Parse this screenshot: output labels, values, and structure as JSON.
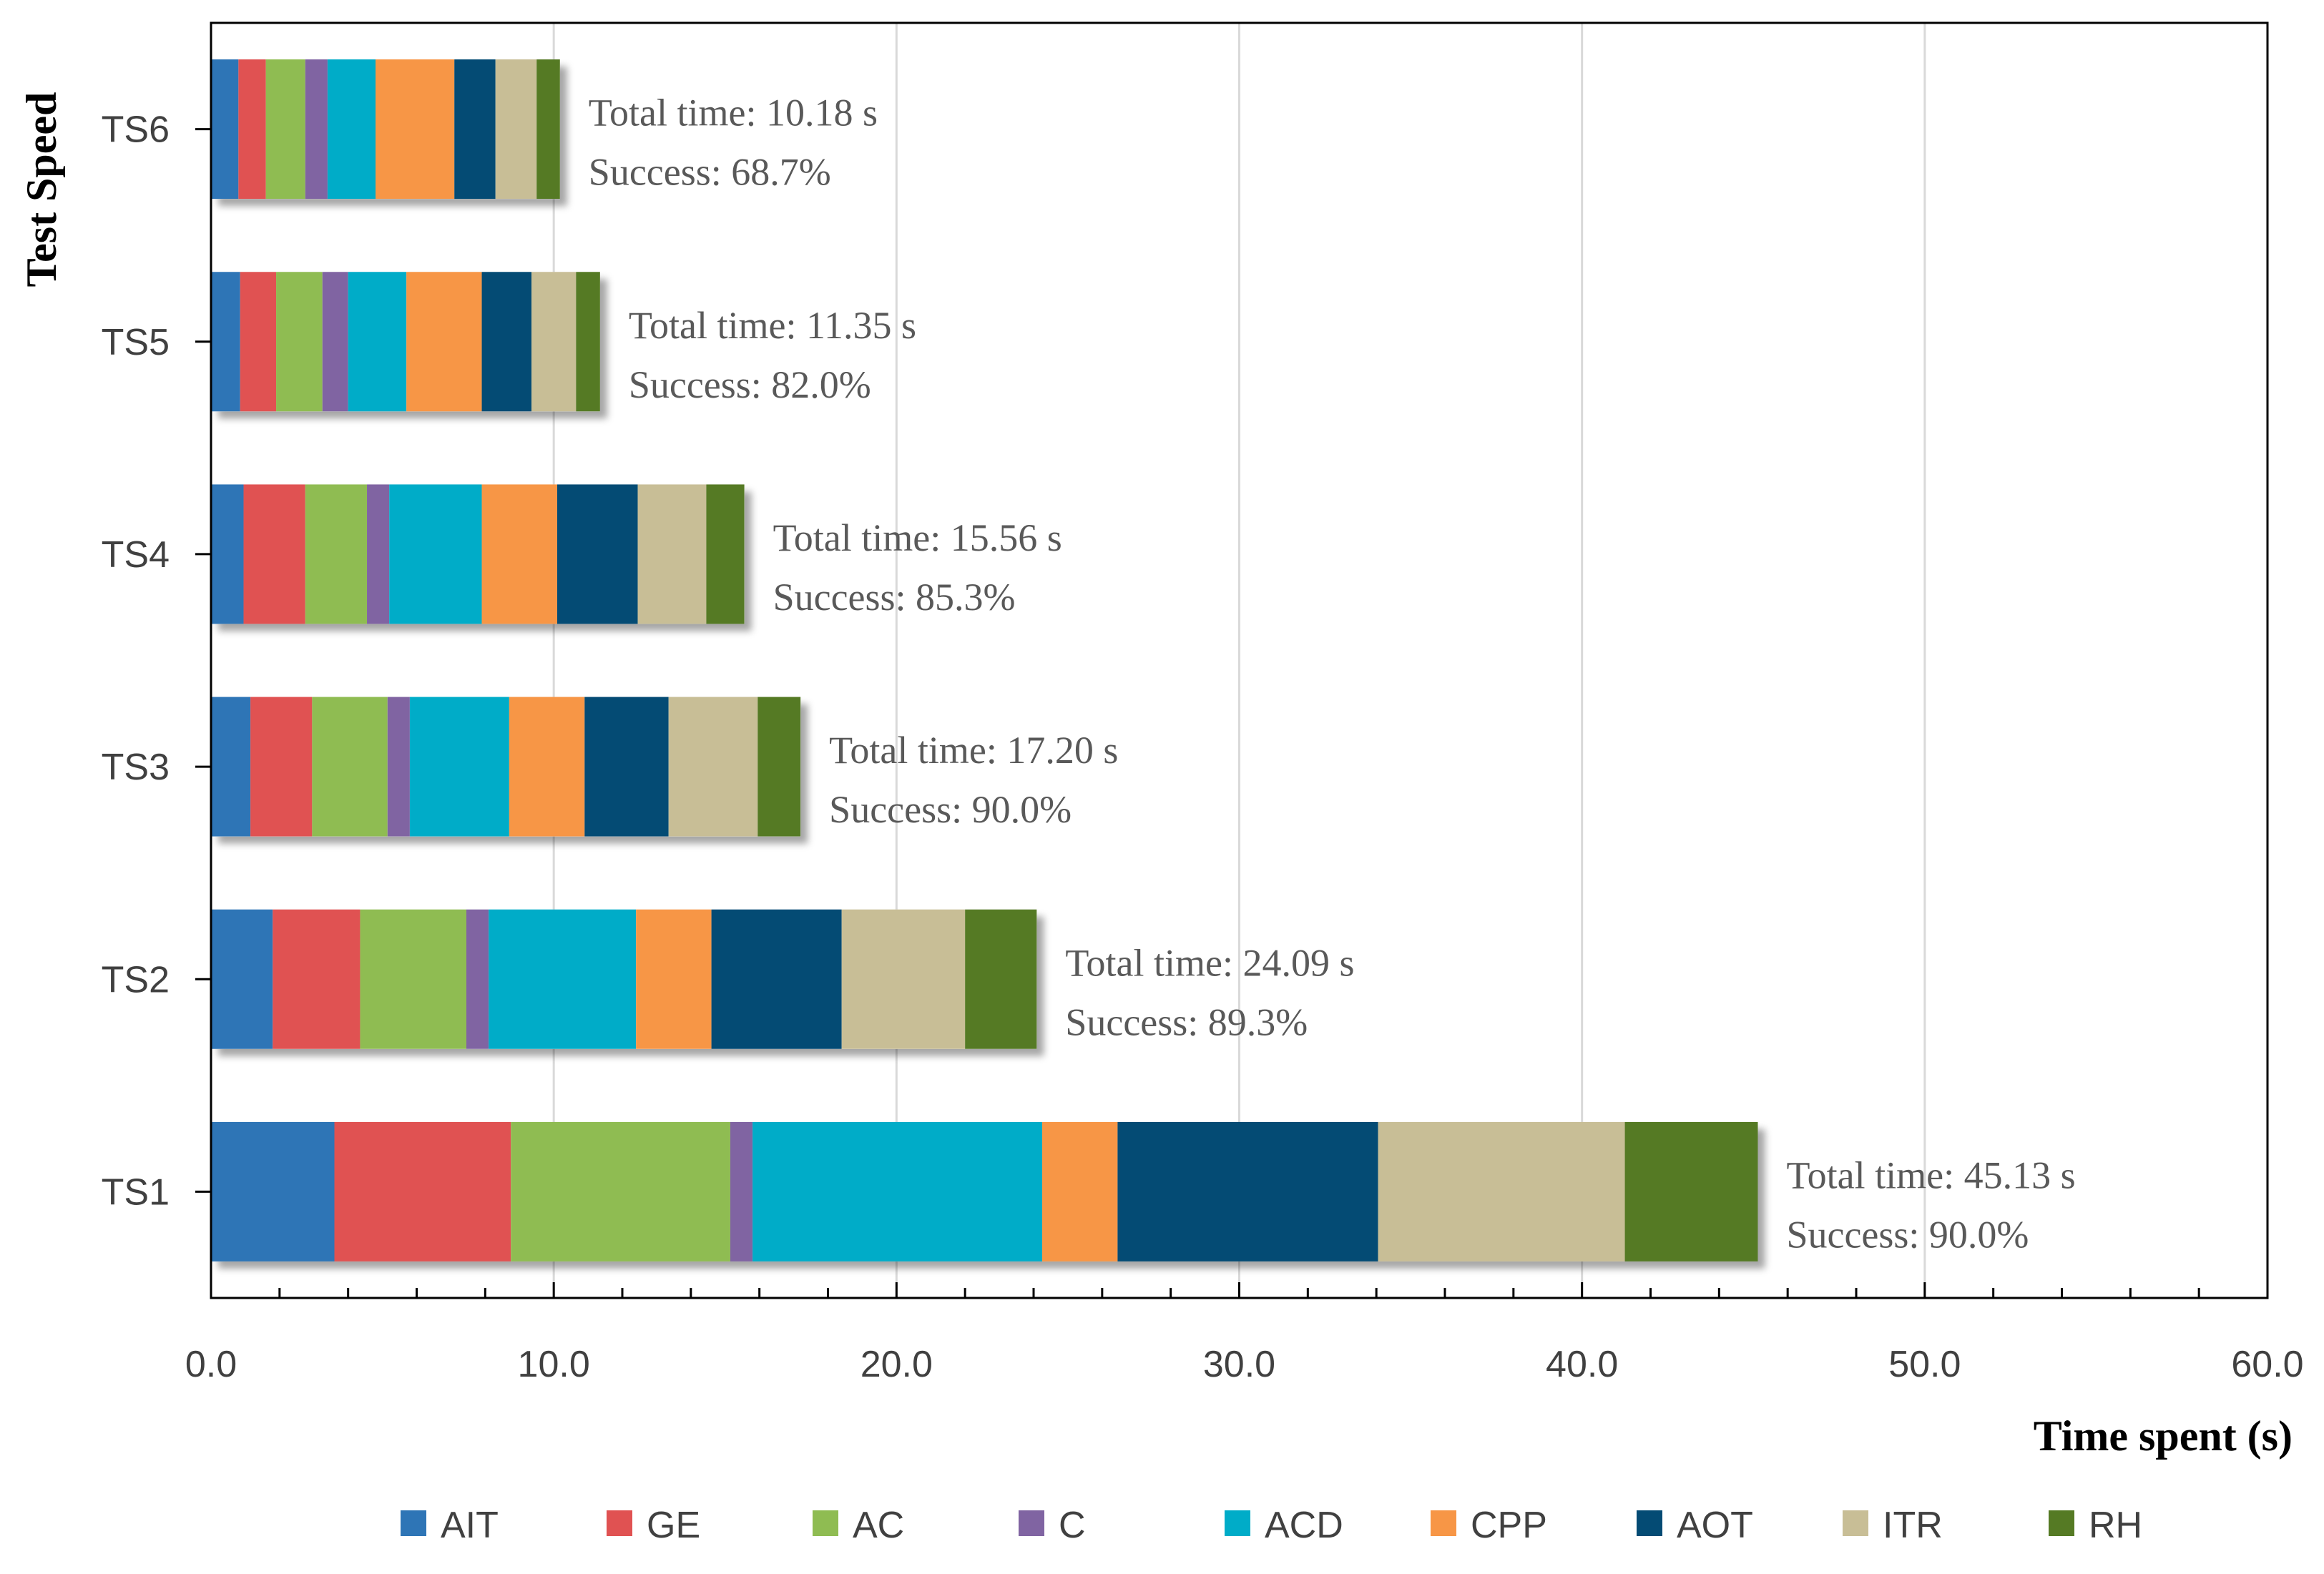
{
  "chart_data": {
    "type": "bar",
    "orientation": "horizontal",
    "stacked": true,
    "title": "",
    "xlabel": "Time spent (s)",
    "ylabel": "Test Speed",
    "xlim": [
      0,
      60
    ],
    "x_ticks": [
      "0.0",
      "10.0",
      "20.0",
      "30.0",
      "40.0",
      "50.0",
      "60.0"
    ],
    "grid": true,
    "legend_position": "bottom",
    "categories": [
      "TS6",
      "TS5",
      "TS4",
      "TS3",
      "TS2",
      "TS1"
    ],
    "series": [
      {
        "name": "AIT",
        "color": "#2E75B6",
        "values": [
          0.8,
          0.85,
          0.95,
          1.15,
          1.8,
          3.6
        ]
      },
      {
        "name": "GE",
        "color": "#E05252",
        "values": [
          0.8,
          1.05,
          1.8,
          1.8,
          2.55,
          5.15
        ]
      },
      {
        "name": "AC",
        "color": "#8FBC52",
        "values": [
          1.15,
          1.35,
          1.8,
          2.2,
          3.1,
          6.4
        ]
      },
      {
        "name": "C",
        "color": "#8064A2",
        "values": [
          0.65,
          0.75,
          0.65,
          0.65,
          0.65,
          0.65
        ]
      },
      {
        "name": "ACD",
        "color": "#00ACC8",
        "values": [
          1.4,
          1.7,
          2.7,
          2.9,
          4.3,
          8.45
        ]
      },
      {
        "name": "CPP",
        "color": "#F79646",
        "values": [
          2.3,
          2.2,
          2.2,
          2.2,
          2.2,
          2.2
        ]
      },
      {
        "name": "AOT",
        "color": "#044B74",
        "values": [
          1.2,
          1.45,
          2.35,
          2.45,
          3.8,
          7.6
        ]
      },
      {
        "name": "ITR",
        "color": "#C8BE96",
        "values": [
          1.2,
          1.3,
          2.0,
          2.6,
          3.6,
          7.2
        ]
      },
      {
        "name": "RH",
        "color": "#557A24",
        "values": [
          0.68,
          0.7,
          1.11,
          1.25,
          2.09,
          3.88
        ]
      }
    ],
    "annotations": [
      {
        "category": "TS6",
        "total_value": 10.18,
        "line1": "Total time: 10.18 s",
        "line2": "Success: 68.7%"
      },
      {
        "category": "TS5",
        "total_value": 11.35,
        "line1": "Total time: 11.35 s",
        "line2": "Success: 82.0%"
      },
      {
        "category": "TS4",
        "total_value": 15.56,
        "line1": "Total time: 15.56 s",
        "line2": "Success: 85.3%"
      },
      {
        "category": "TS3",
        "total_value": 17.2,
        "line1": "Total time: 17.20 s",
        "line2": "Success: 90.0%"
      },
      {
        "category": "TS2",
        "total_value": 24.09,
        "line1": "Total time: 24.09 s",
        "line2": "Success: 89.3%"
      },
      {
        "category": "TS1",
        "total_value": 45.13,
        "line1": "Total time: 45.13 s",
        "line2": "Success: 90.0%"
      }
    ]
  }
}
